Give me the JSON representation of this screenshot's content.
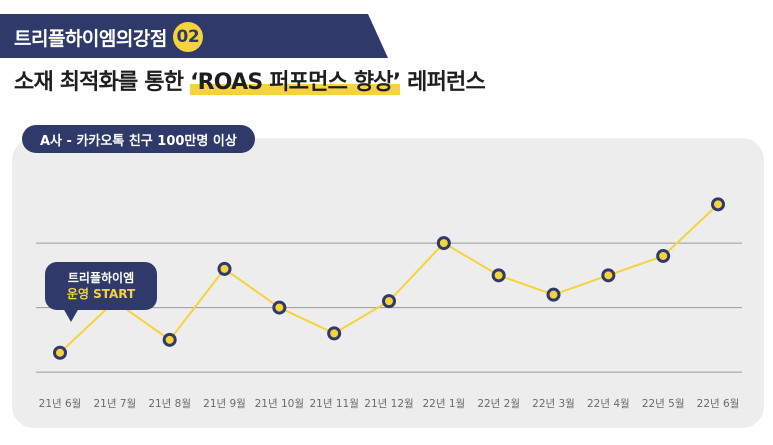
{
  "banner": {
    "title": "트리플하이엠의강점",
    "badge": "02"
  },
  "headline": {
    "before": "소재 최적화를 통한 ",
    "highlight": "‘ROAS 퍼포먼스 향상’",
    "after": " 레퍼런스"
  },
  "chart_tab": "A사 - 카카오톡 친구 100만명 이상",
  "callout": {
    "line1": "트리플하이엠",
    "line2": "운영 START"
  },
  "colors": {
    "navy": "#2f3a6b",
    "yellow": "#f6d33a",
    "line": "#f6d33a",
    "card": "#ededed",
    "grid": "#9a9a9a"
  },
  "chart_data": {
    "type": "line",
    "categories": [
      "21년 6월",
      "21년 7월",
      "21년 8월",
      "21년 9월",
      "21년 10월",
      "21년 11월",
      "21년 12월",
      "22년 1월",
      "22년 2월",
      "22년 3월",
      "22년 4월",
      "22년 5월",
      "22년 6월"
    ],
    "series": [
      {
        "values": [
          -0.7,
          0.1,
          -0.5,
          0.6,
          0.0,
          -0.4,
          0.1,
          1.0,
          0.5,
          0.2,
          0.5,
          0.8,
          1.6
        ]
      }
    ],
    "ylim": [
      -1.2,
      1.9
    ],
    "gridlines": [
      1.0,
      0.0,
      -1.0
    ],
    "grid": true,
    "legend": "none"
  }
}
